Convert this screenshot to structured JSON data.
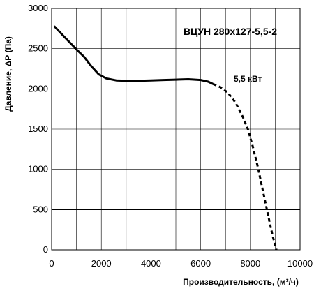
{
  "chart_data": {
    "type": "line",
    "title": "ВЦУН 280х127-5,5-2",
    "xlabel": "Производительность, (м³/ч)",
    "ylabel": "Давление, ΔР (Па)",
    "xlim": [
      0,
      10000
    ],
    "ylim": [
      0,
      3000
    ],
    "xticks": [
      0,
      2000,
      4000,
      6000,
      8000,
      10000
    ],
    "yticks": [
      0,
      500,
      1000,
      1500,
      2000,
      2500,
      3000
    ],
    "grid": true,
    "reference_line": {
      "y": 500
    },
    "series": [
      {
        "name": "5,5 кВт",
        "segments": [
          {
            "style": "solid",
            "x": [
              100,
              500,
              1000,
              1300,
              1600,
              1900,
              2200,
              2600,
              3000,
              3500,
              4000,
              4500,
              5000,
              5500,
              6000,
              6300,
              6500
            ],
            "y": [
              2780,
              2650,
              2490,
              2400,
              2280,
              2180,
              2130,
              2105,
              2100,
              2100,
              2105,
              2110,
              2115,
              2120,
              2110,
              2090,
              2060
            ]
          },
          {
            "style": "dashed",
            "x": [
              6500,
              6800,
              7100,
              7400,
              7700,
              7900,
              8100,
              8300,
              8500,
              8700,
              8900,
              9050
            ],
            "y": [
              2060,
              2020,
              1950,
              1830,
              1650,
              1500,
              1280,
              1030,
              740,
              450,
              170,
              0
            ]
          }
        ]
      }
    ]
  }
}
